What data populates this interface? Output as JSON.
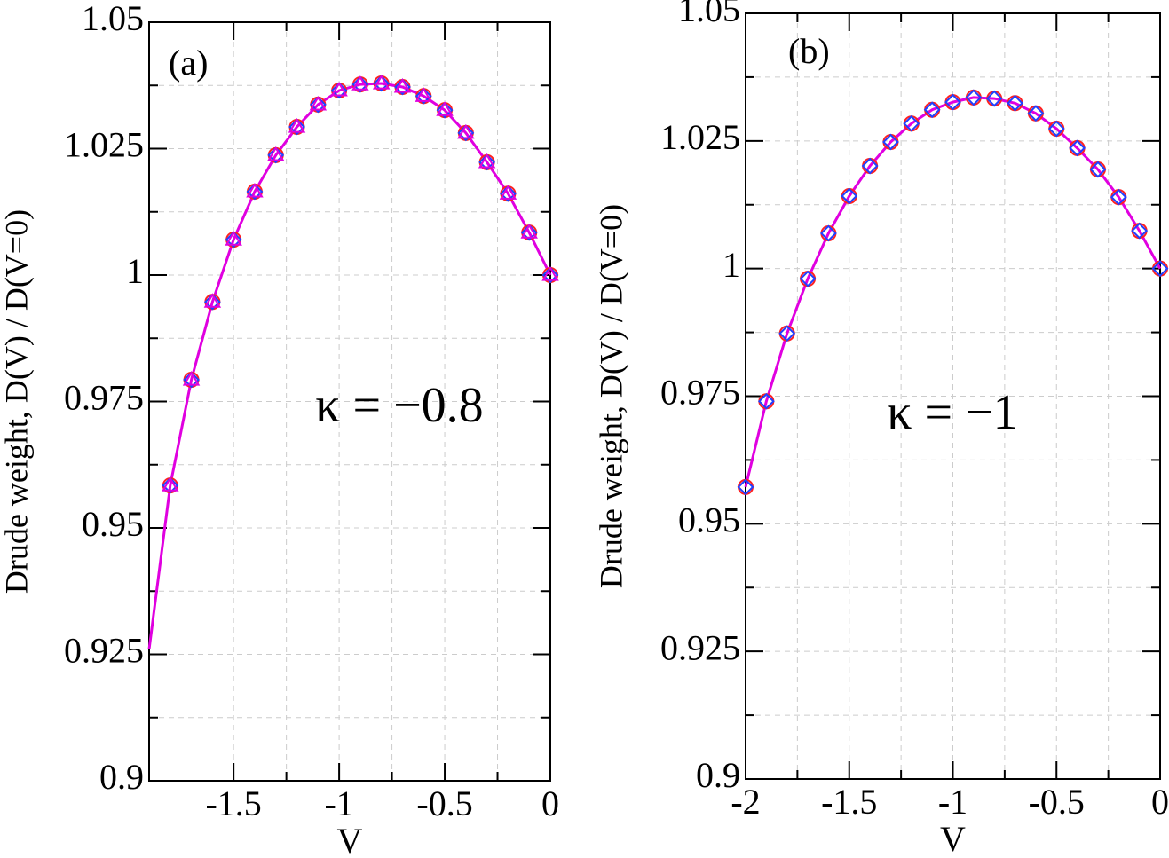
{
  "chart_data": [
    {
      "type": "line",
      "panel_label": "(a)",
      "annotation": "κ = −0.8",
      "xlabel": "V",
      "ylabel": "Drude weight, D(V) / D(V=0)",
      "xlim": [
        -1.9,
        0
      ],
      "xticks": [
        -1.5,
        -1,
        -0.5,
        0
      ],
      "ylim": [
        0.9,
        1.05
      ],
      "yticks": [
        0.9,
        0.925,
        0.95,
        0.975,
        1,
        1.025,
        1.05
      ],
      "grid": true,
      "series": [
        {
          "color": "#e000e0",
          "marker": "line",
          "x": [
            -1.9,
            -1.8,
            -1.7,
            -1.6,
            -1.5,
            -1.4,
            -1.3,
            -1.2,
            -1.1,
            -1.0,
            -0.9,
            -0.8,
            -0.7,
            -0.6,
            -0.5,
            -0.4,
            -0.3,
            -0.2,
            -0.1,
            0
          ],
          "values": [
            0.926,
            0.9584,
            0.9793,
            0.9947,
            1.007,
            1.0165,
            1.0237,
            1.0293,
            1.0337,
            1.0365,
            1.0377,
            1.0379,
            1.0372,
            1.0354,
            1.0326,
            1.0281,
            1.0223,
            1.0161,
            1.0084,
            1
          ]
        },
        {
          "color": "#ff2020",
          "marker": "circle",
          "x": [
            -1.8,
            -1.7,
            -1.6,
            -1.5,
            -1.4,
            -1.3,
            -1.2,
            -1.1,
            -1.0,
            -0.9,
            -0.8,
            -0.7,
            -0.6,
            -0.5,
            -0.4,
            -0.3,
            -0.2,
            -0.1,
            0
          ],
          "values": [
            0.9584,
            0.9793,
            0.9947,
            1.007,
            1.0165,
            1.0237,
            1.0293,
            1.0337,
            1.0365,
            1.0377,
            1.0379,
            1.0372,
            1.0354,
            1.0326,
            1.0281,
            1.0223,
            1.0161,
            1.0084,
            1
          ]
        },
        {
          "color": "#2040ff",
          "marker": "diamond",
          "x": [
            -1.8,
            -1.7,
            -1.6,
            -1.5,
            -1.4,
            -1.3,
            -1.2,
            -1.1,
            -1.0,
            -0.9,
            -0.8,
            -0.7,
            -0.6,
            -0.5,
            -0.4,
            -0.3,
            -0.2,
            -0.1,
            0
          ],
          "values": [
            0.9584,
            0.9793,
            0.9947,
            1.007,
            1.0165,
            1.0237,
            1.0293,
            1.0337,
            1.0365,
            1.0377,
            1.0379,
            1.0372,
            1.0354,
            1.0326,
            1.0281,
            1.0223,
            1.0161,
            1.0084,
            1
          ]
        },
        {
          "color": "#e000e0",
          "marker": "triangle",
          "x": [
            -1.8,
            -1.7,
            -1.6,
            -1.5,
            -1.4,
            -1.3,
            -1.2,
            -1.1,
            -1.0,
            -0.9,
            -0.8,
            -0.7,
            -0.6,
            -0.5,
            -0.4,
            -0.3,
            -0.2,
            -0.1,
            0
          ],
          "values": [
            0.9584,
            0.9793,
            0.9947,
            1.007,
            1.0165,
            1.0237,
            1.0293,
            1.0337,
            1.0365,
            1.0377,
            1.0379,
            1.0372,
            1.0354,
            1.0326,
            1.0281,
            1.0223,
            1.0161,
            1.0084,
            1
          ]
        }
      ]
    },
    {
      "type": "line",
      "panel_label": "(b)",
      "annotation": "κ = −1",
      "xlabel": "V",
      "ylabel": "Drude weight, D(V) / D(V=0)",
      "xlim": [
        -2,
        0
      ],
      "xticks": [
        -2,
        -1.5,
        -1,
        -0.5,
        0
      ],
      "ylim": [
        0.9,
        1.05
      ],
      "yticks": [
        0.9,
        0.925,
        0.95,
        0.975,
        1,
        1.025,
        1.05
      ],
      "grid": true,
      "series": [
        {
          "color": "#e000e0",
          "marker": "line",
          "x": [
            -2,
            -1.9,
            -1.8,
            -1.7,
            -1.6,
            -1.5,
            -1.4,
            -1.3,
            -1.2,
            -1.1,
            -1.0,
            -0.9,
            -0.8,
            -0.7,
            -0.6,
            -0.5,
            -0.4,
            -0.3,
            -0.2,
            -0.1,
            0
          ],
          "values": [
            0.9572,
            0.974,
            0.9873,
            0.998,
            1.0069,
            1.0142,
            1.0201,
            1.0248,
            1.0284,
            1.0311,
            1.0326,
            1.0335,
            1.0333,
            1.0324,
            1.0304,
            1.0274,
            1.0236,
            1.0194,
            1.014,
            1.0074,
            1
          ]
        },
        {
          "color": "#ff2020",
          "marker": "circle",
          "x": [
            -2,
            -1.9,
            -1.8,
            -1.7,
            -1.6,
            -1.5,
            -1.4,
            -1.3,
            -1.2,
            -1.1,
            -1.0,
            -0.9,
            -0.8,
            -0.7,
            -0.6,
            -0.5,
            -0.4,
            -0.3,
            -0.2,
            -0.1,
            0
          ],
          "values": [
            0.9572,
            0.974,
            0.9873,
            0.998,
            1.0069,
            1.0142,
            1.0201,
            1.0248,
            1.0284,
            1.0311,
            1.0326,
            1.0335,
            1.0333,
            1.0324,
            1.0304,
            1.0274,
            1.0236,
            1.0194,
            1.014,
            1.0074,
            1
          ]
        },
        {
          "color": "#2040ff",
          "marker": "diamond",
          "x": [
            -2,
            -1.9,
            -1.8,
            -1.7,
            -1.6,
            -1.5,
            -1.4,
            -1.3,
            -1.2,
            -1.1,
            -1.0,
            -0.9,
            -0.8,
            -0.7,
            -0.6,
            -0.5,
            -0.4,
            -0.3,
            -0.2,
            -0.1,
            0
          ],
          "values": [
            0.9572,
            0.974,
            0.9873,
            0.998,
            1.0069,
            1.0142,
            1.0201,
            1.0248,
            1.0284,
            1.0311,
            1.0326,
            1.0335,
            1.0333,
            1.0324,
            1.0304,
            1.0274,
            1.0236,
            1.0194,
            1.014,
            1.0074,
            1
          ]
        }
      ]
    }
  ]
}
